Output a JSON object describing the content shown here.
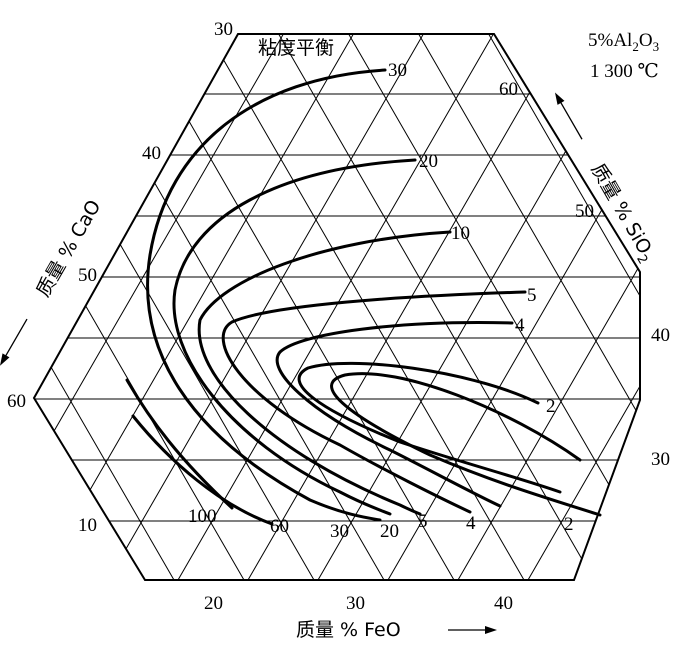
{
  "title": "粘度平衡",
  "conditions": {
    "al2o3": "5%Al",
    "al2o3_sub1": "2",
    "al2o3_o": "O",
    "al2o3_sub2": "3",
    "temperature": "1 300 ℃"
  },
  "axes": {
    "cao": {
      "label": "质量 % CaO",
      "ticks": [
        "30",
        "40",
        "50",
        "60",
        "10"
      ]
    },
    "sio2": {
      "label": "质量 % SiO",
      "label_sub": "2",
      "ticks": [
        "60",
        "50",
        "40",
        "30"
      ]
    },
    "feo": {
      "label": "质量 % FeO",
      "ticks": [
        "20",
        "30",
        "40"
      ]
    }
  },
  "isolines": [
    "30",
    "20",
    "10",
    "5",
    "4",
    "2",
    "100",
    "60",
    "30",
    "20",
    "5",
    "4",
    "2"
  ]
}
